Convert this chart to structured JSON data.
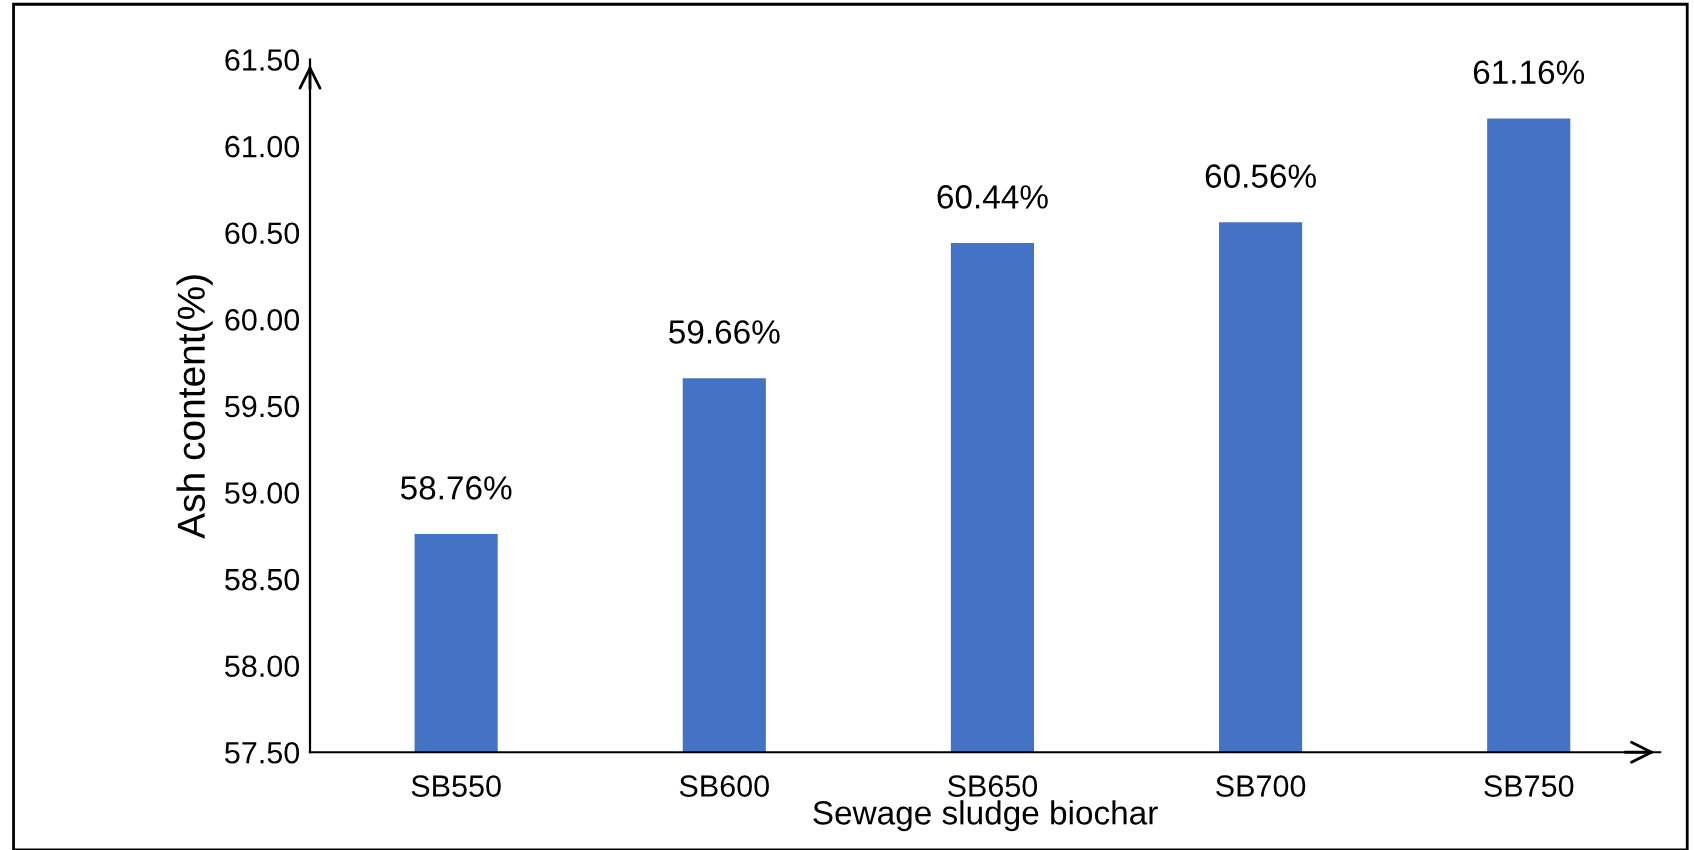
{
  "chart_data": {
    "type": "bar",
    "xlabel": "Sewage sludge biochar",
    "ylabel": "Ash content(%)",
    "categories": [
      "SB550",
      "SB600",
      "SB650",
      "SB700",
      "SB750"
    ],
    "values": [
      58.76,
      59.66,
      60.44,
      60.56,
      61.16
    ],
    "value_labels": [
      "58.76%",
      "59.66%",
      "60.44%",
      "60.56%",
      "61.16%"
    ],
    "color": "#4472c4",
    "ylim": [
      57.5,
      61.5
    ],
    "yticks": [
      {
        "value": 57.5,
        "label": "57.50"
      },
      {
        "value": 58.0,
        "label": "58.00"
      },
      {
        "value": 58.5,
        "label": "58.50"
      },
      {
        "value": 59.0,
        "label": "59.00"
      },
      {
        "value": 59.5,
        "label": "59.50"
      },
      {
        "value": 60.0,
        "label": "60.00"
      },
      {
        "value": 60.5,
        "label": "60.50"
      },
      {
        "value": 61.0,
        "label": "61.00"
      },
      {
        "value": 61.5,
        "label": "61.50"
      }
    ],
    "grid": false,
    "legend": false
  }
}
